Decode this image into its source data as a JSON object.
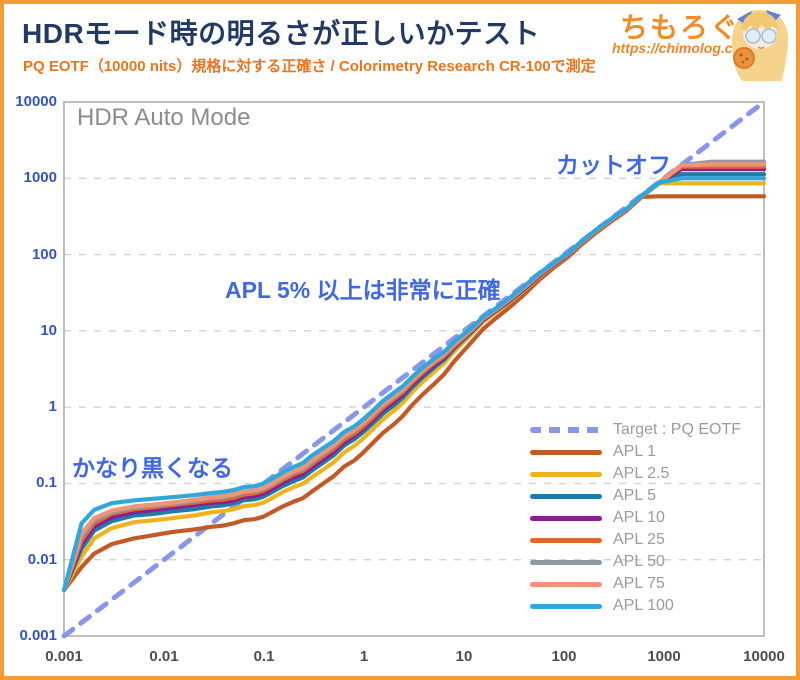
{
  "header": {
    "title": "HDRモード時の明るさが正しいかテスト",
    "subtitle": "PQ EOTF（10000 nits）規格に対する正確さ / Colorimetry Research CR-100で測定",
    "brand": {
      "name": "ちもろぐ",
      "url": "https://chimolog.co/"
    }
  },
  "chart_data": {
    "type": "line",
    "title": "HDR Auto Mode",
    "x_scale": "log",
    "y_scale": "log",
    "xlim": [
      0.001,
      10000
    ],
    "ylim": [
      0.001,
      10000
    ],
    "xlabel": "",
    "ylabel": "",
    "grid": "horizontal-dashed",
    "legend_position": "inside-lower-right",
    "x_ticks": [
      "0.001",
      "0.01",
      "0.1",
      "1",
      "10",
      "100",
      "1000",
      "10000"
    ],
    "y_ticks": [
      "10000",
      "1000",
      "100",
      "10",
      "1",
      "0.1",
      "0.01",
      "0.001"
    ],
    "annotations": [
      {
        "id": "cutoff",
        "text": "カットオフ"
      },
      {
        "id": "accurate",
        "text": "APL 5% 以上は非常に正確"
      },
      {
        "id": "crush",
        "text": "かなり黒くなる"
      }
    ],
    "target": {
      "label": "Target : PQ EOTF",
      "color": "#8a96ea",
      "style": "dashed",
      "x": [
        0.001,
        10000
      ],
      "y": [
        0.001,
        10000
      ]
    },
    "x": [
      0.001,
      0.0015,
      0.002,
      0.003,
      0.005,
      0.008,
      0.012,
      0.02,
      0.03,
      0.05,
      0.08,
      0.12,
      0.2,
      0.3,
      0.5,
      0.8,
      1.2,
      2,
      3,
      5,
      8,
      12,
      20,
      40,
      80,
      150,
      300,
      600,
      900,
      1500,
      3000,
      6000,
      10000
    ],
    "series": [
      {
        "label": "APL 1",
        "color": "#c05a28",
        "peak_nits": 580,
        "values": [
          0.004,
          0.008,
          0.012,
          0.016,
          0.019,
          0.021,
          0.023,
          0.025,
          0.027,
          0.03,
          0.034,
          0.042,
          0.058,
          0.078,
          0.125,
          0.2,
          0.33,
          0.6,
          1.05,
          2.0,
          4.0,
          7.2,
          14,
          30,
          68,
          135,
          275,
          570,
          580,
          580,
          580,
          580,
          580
        ]
      },
      {
        "label": "APL 2.5",
        "color": "#edb41e",
        "peak_nits": 860,
        "values": [
          0.004,
          0.011,
          0.019,
          0.026,
          0.031,
          0.033,
          0.035,
          0.038,
          0.042,
          0.046,
          0.052,
          0.064,
          0.09,
          0.12,
          0.19,
          0.31,
          0.5,
          0.9,
          1.55,
          2.9,
          5.4,
          9.2,
          16.8,
          34,
          72.5,
          140,
          281,
          578,
          860,
          860,
          860,
          860,
          860
        ]
      },
      {
        "label": "APL 5",
        "color": "#1f7ca6",
        "peak_nits": 1130,
        "values": [
          0.004,
          0.014,
          0.024,
          0.032,
          0.038,
          0.04,
          0.043,
          0.046,
          0.05,
          0.055,
          0.062,
          0.077,
          0.108,
          0.147,
          0.235,
          0.38,
          0.6,
          1.06,
          1.8,
          3.3,
          5.9,
          9.7,
          17.5,
          35,
          74,
          142,
          284,
          582,
          875,
          1130,
          1130,
          1130,
          1130
        ]
      },
      {
        "label": "APL 10",
        "color": "#8c1f8f",
        "peak_nits": 1320,
        "values": [
          0.004,
          0.016,
          0.027,
          0.036,
          0.042,
          0.045,
          0.048,
          0.052,
          0.056,
          0.06,
          0.068,
          0.084,
          0.12,
          0.162,
          0.26,
          0.42,
          0.66,
          1.17,
          1.95,
          3.5,
          6.1,
          10.0,
          17.8,
          35.5,
          74.5,
          143,
          286,
          585,
          878,
          1320,
          1320,
          1320,
          1320
        ]
      },
      {
        "label": "APL 25",
        "color": "#e2672f",
        "peak_nits": 1420,
        "values": [
          0.004,
          0.018,
          0.03,
          0.04,
          0.046,
          0.049,
          0.052,
          0.056,
          0.06,
          0.065,
          0.074,
          0.092,
          0.132,
          0.178,
          0.285,
          0.45,
          0.71,
          1.28,
          2.08,
          3.75,
          6.3,
          10.2,
          18.1,
          36.5,
          76,
          144,
          288,
          588,
          882,
          1420,
          1420,
          1420,
          1420
        ]
      },
      {
        "label": "APL 50",
        "color": "#8e99a4",
        "peak_nits": 1650,
        "values": [
          0.004,
          0.02,
          0.033,
          0.042,
          0.048,
          0.051,
          0.054,
          0.059,
          0.064,
          0.07,
          0.079,
          0.097,
          0.14,
          0.19,
          0.31,
          0.49,
          0.77,
          1.35,
          2.2,
          3.9,
          6.7,
          10.5,
          18.4,
          37,
          77,
          146,
          293,
          592,
          888,
          1490,
          1650,
          1650,
          1650
        ]
      },
      {
        "label": "APL 75",
        "color": "#f09478",
        "peak_nits": 1520,
        "values": [
          0.004,
          0.022,
          0.035,
          0.044,
          0.05,
          0.053,
          0.056,
          0.061,
          0.066,
          0.072,
          0.081,
          0.1,
          0.145,
          0.2,
          0.32,
          0.5,
          0.79,
          1.4,
          2.25,
          4.0,
          6.8,
          10.6,
          18.6,
          37.5,
          78,
          147,
          295,
          590,
          885,
          1480,
          1520,
          1520,
          1520
        ]
      },
      {
        "label": "APL 100",
        "color": "#30a7dc",
        "peak_nits": 1000,
        "values": [
          0.004,
          0.03,
          0.045,
          0.055,
          0.06,
          0.063,
          0.066,
          0.07,
          0.075,
          0.082,
          0.092,
          0.115,
          0.165,
          0.23,
          0.36,
          0.56,
          0.88,
          1.55,
          2.45,
          4.3,
          7.2,
          11,
          19,
          38.5,
          79,
          149,
          298,
          595,
          880,
          1000,
          1000,
          1000,
          1000
        ]
      }
    ]
  }
}
